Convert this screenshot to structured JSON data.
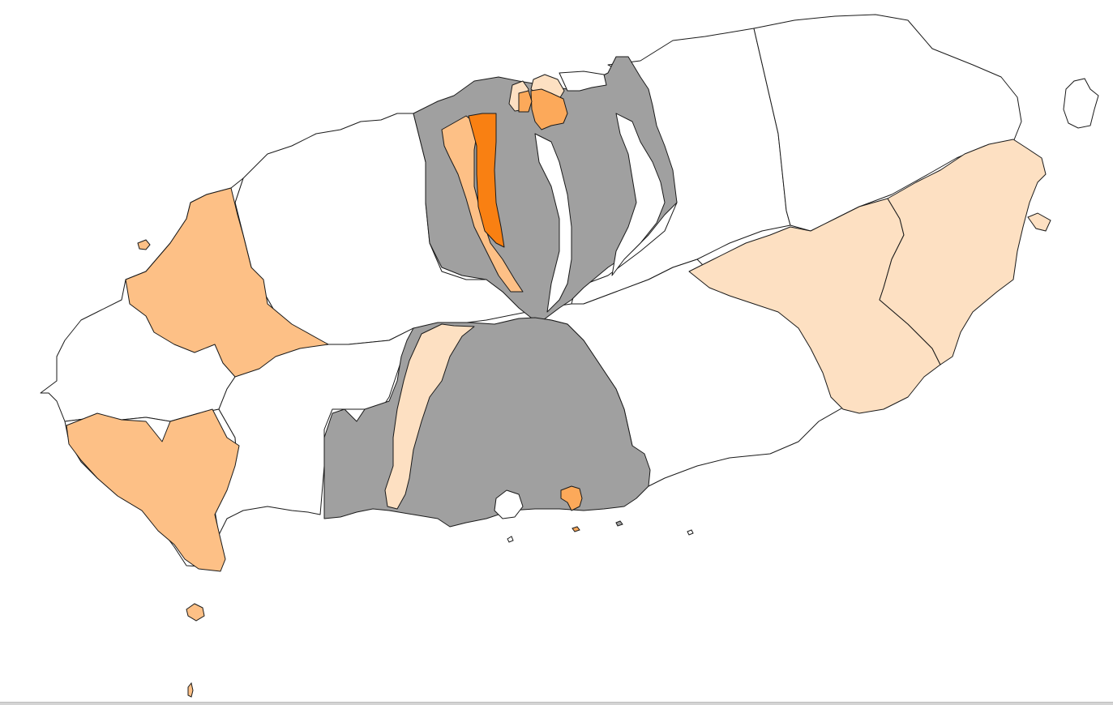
{
  "map": {
    "palette": {
      "no_data": "#ffffff",
      "gray": "#a0a0a0",
      "level_1": "#fde0c2",
      "level_2": "#fdc086",
      "level_3": "#fca95a",
      "level_4": "#f98012",
      "outline": "#1a1a1a"
    },
    "regions": [
      {
        "id": "north-coast-west",
        "class": "no_data"
      },
      {
        "id": "west-coast-north",
        "class": "no_data"
      },
      {
        "id": "west-coast-south",
        "class": "no_data"
      },
      {
        "id": "west-district",
        "class": "level_2"
      },
      {
        "id": "southwest-district",
        "class": "level_2"
      },
      {
        "id": "south-central-west",
        "class": "no_data"
      },
      {
        "id": "northeast-district-1",
        "class": "no_data"
      },
      {
        "id": "northeast-district-2",
        "class": "no_data"
      },
      {
        "id": "east-district-west",
        "class": "level_1"
      },
      {
        "id": "east-district-east",
        "class": "level_1"
      },
      {
        "id": "southeast-coast",
        "class": "no_data"
      },
      {
        "id": "center-north-gray-block",
        "class": "gray"
      },
      {
        "id": "center-north-white-strip-1",
        "class": "no_data"
      },
      {
        "id": "center-north-white-strip-2",
        "class": "no_data"
      },
      {
        "id": "center-north-light",
        "class": "level_2"
      },
      {
        "id": "center-north-dark",
        "class": "level_4"
      },
      {
        "id": "city-cluster-light-1",
        "class": "level_1"
      },
      {
        "id": "city-cluster-light-2",
        "class": "level_1"
      },
      {
        "id": "city-cluster-medium-1",
        "class": "level_3"
      },
      {
        "id": "city-cluster-medium-2",
        "class": "level_3"
      },
      {
        "id": "city-cluster-white",
        "class": "no_data"
      },
      {
        "id": "center-south-gray-block",
        "class": "gray"
      },
      {
        "id": "center-south-light-strip",
        "class": "level_1"
      },
      {
        "id": "south-port-district",
        "class": "level_3"
      },
      {
        "id": "south-coast-white",
        "class": "no_data"
      }
    ],
    "islets": [
      {
        "id": "islet-west",
        "class": "level_2"
      },
      {
        "id": "islet-southwest-1",
        "class": "level_2"
      },
      {
        "id": "islet-southwest-2",
        "class": "level_2"
      },
      {
        "id": "islet-east",
        "class": "no_data"
      },
      {
        "id": "islet-east-small",
        "class": "level_1"
      },
      {
        "id": "islet-south-1",
        "class": "level_3"
      },
      {
        "id": "islet-south-2",
        "class": "no_data"
      },
      {
        "id": "islet-south-3",
        "class": "gray"
      },
      {
        "id": "islet-south-4",
        "class": "no_data"
      }
    ]
  }
}
